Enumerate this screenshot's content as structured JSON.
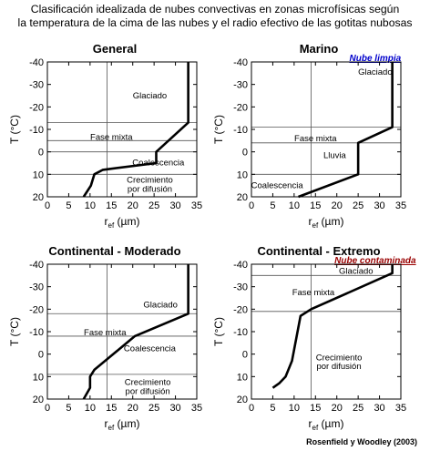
{
  "figure": {
    "title_line1": "Clasificación idealizada de nubes convectivas en zonas microfísicas según",
    "title_line2": "la temperatura de la cima de las nubes y el radio efectivo de las gotitas nubosas",
    "credit": "Rosenfield y Woodley (2003)"
  },
  "colors": {
    "line": "#000000",
    "grid": "#555555",
    "clean_label": "#0000cc",
    "polluted_label": "#990000"
  },
  "chart_data": [
    {
      "type": "line",
      "title": "General",
      "tag": "",
      "xlabel": "r",
      "xlabel_sub": "ef",
      "xlabel_unit": " (µm)",
      "ylabel": "T (°C)",
      "xlim": [
        0,
        35
      ],
      "ylim": [
        20,
        -40
      ],
      "xticks": [
        0,
        5,
        10,
        15,
        20,
        25,
        30,
        35
      ],
      "yticks": [
        -40,
        -30,
        -20,
        -10,
        0,
        10,
        20
      ],
      "x": [
        8.5,
        10.2,
        11,
        13,
        25.5,
        25.5,
        33,
        33
      ],
      "y": [
        20,
        15,
        10,
        8,
        5,
        0,
        -13,
        -40
      ],
      "vlines": [
        14
      ],
      "hlines": [
        -13,
        -5,
        0,
        10
      ],
      "zones": [
        {
          "text": "Glaciado",
          "x": 24,
          "y": -25
        },
        {
          "text": "Fase mixta",
          "x": 15,
          "y": -6.5
        },
        {
          "text": "Coalescencia",
          "x": 26,
          "y": 4.8
        },
        {
          "text": "Crecimiento",
          "x": 24,
          "y": 12.5
        },
        {
          "text": "por difusión",
          "x": 24,
          "y": 16.5
        }
      ]
    },
    {
      "type": "line",
      "title": "Marino",
      "tag": "Nube limpia",
      "xlabel": "r",
      "xlabel_sub": "ef",
      "xlabel_unit": " (µm)",
      "ylabel": "T (°C)",
      "xlim": [
        0,
        35
      ],
      "ylim": [
        20,
        -40
      ],
      "xticks": [
        0,
        5,
        10,
        15,
        20,
        25,
        30,
        35
      ],
      "yticks": [
        -40,
        -30,
        -20,
        -10,
        0,
        10,
        20
      ],
      "x": [
        11,
        25,
        25,
        33,
        33
      ],
      "y": [
        20,
        10,
        -4,
        -11,
        -40
      ],
      "vlines": [
        14
      ],
      "hlines": [
        -11,
        -4,
        10
      ],
      "zones": [
        {
          "text": "Glaciado",
          "x": 29,
          "y": -35.5
        },
        {
          "text": "Fase mixta",
          "x": 15,
          "y": -6
        },
        {
          "text": "Lluvia",
          "x": 19.5,
          "y": 1.5
        },
        {
          "text": "Coalescencia",
          "x": 6,
          "y": 15
        }
      ]
    },
    {
      "type": "line",
      "title": "Continental - Moderado",
      "tag": "",
      "xlabel": "r",
      "xlabel_sub": "ef",
      "xlabel_unit": " (µm)",
      "ylabel": "T (°C)",
      "xlim": [
        0,
        35
      ],
      "ylim": [
        20,
        -40
      ],
      "xticks": [
        0,
        5,
        10,
        15,
        20,
        25,
        30,
        35
      ],
      "yticks": [
        -40,
        -30,
        -20,
        -10,
        0,
        10,
        20
      ],
      "x": [
        8.5,
        10,
        10,
        11,
        20.5,
        33,
        33
      ],
      "y": [
        20,
        15,
        10,
        7,
        -8,
        -18,
        -40
      ],
      "vlines": [
        14
      ],
      "hlines": [
        -18,
        -8,
        9
      ],
      "zones": [
        {
          "text": "Glaciado",
          "x": 26.5,
          "y": -22
        },
        {
          "text": "Fase mixta",
          "x": 13.5,
          "y": -9.5
        },
        {
          "text": "Coalescencia",
          "x": 24,
          "y": -2.5
        },
        {
          "text": "Crecimiento",
          "x": 23.5,
          "y": 12.5
        },
        {
          "text": "por difusión",
          "x": 23.5,
          "y": 16.5
        }
      ]
    },
    {
      "type": "line",
      "title": "Continental - Extremo",
      "tag": "Nube contaminada",
      "xlabel": "r",
      "xlabel_sub": "ef",
      "xlabel_unit": " (µm)",
      "ylabel": "T (°C)",
      "xlim": [
        0,
        35
      ],
      "ylim": [
        20,
        -40
      ],
      "xticks": [
        0,
        5,
        10,
        15,
        20,
        25,
        30,
        35
      ],
      "yticks": [
        -40,
        -30,
        -20,
        -10,
        0,
        10,
        20
      ],
      "x": [
        5,
        6.5,
        8,
        9.5,
        11.5,
        14,
        33,
        33
      ],
      "y": [
        15,
        13,
        10,
        3,
        -17,
        -20,
        -36,
        -40
      ],
      "vlines": [
        14
      ],
      "hlines": [
        -35,
        -19
      ],
      "zones": [
        {
          "text": "Glaciado",
          "x": 24.5,
          "y": -37
        },
        {
          "text": "Fase mixta",
          "x": 14.5,
          "y": -27.5
        },
        {
          "text": "Crecimiento",
          "x": 20.5,
          "y": 1.5
        },
        {
          "text": "por difusión",
          "x": 20.5,
          "y": 5.5
        }
      ]
    }
  ]
}
